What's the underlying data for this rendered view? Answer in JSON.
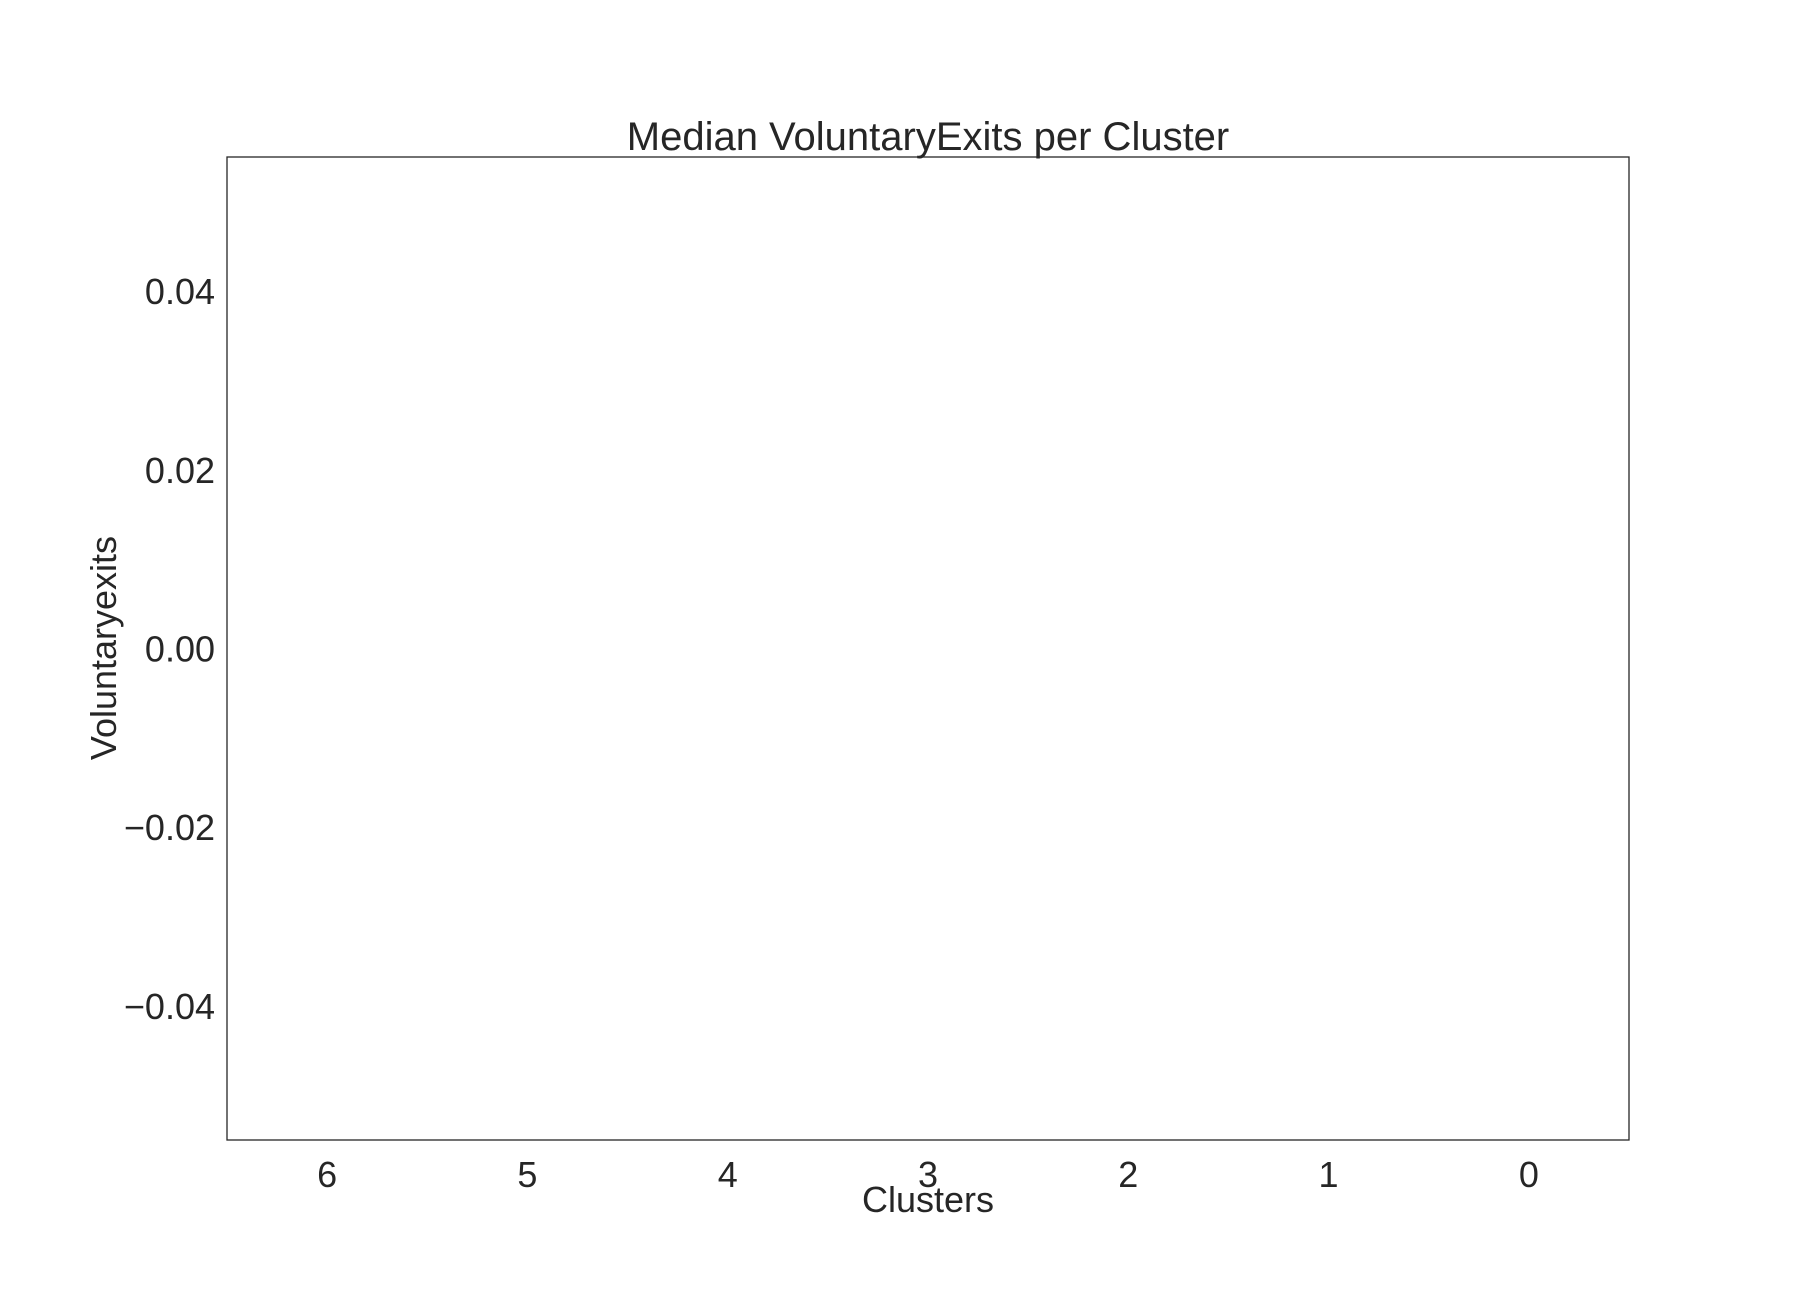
{
  "chart_data": {
    "type": "bar",
    "title": "Median VoluntaryExits per Cluster",
    "xlabel": "Clusters",
    "ylabel": "Voluntaryexits",
    "categories": [
      "6",
      "5",
      "4",
      "3",
      "2",
      "1",
      "0"
    ],
    "values": [
      0,
      0,
      0,
      0,
      0,
      0,
      0
    ],
    "ylim": [
      -0.055,
      0.055
    ],
    "yticks": [
      0.04,
      0.02,
      0.0,
      -0.02,
      -0.04
    ],
    "ytick_labels": [
      "0.04",
      "0.02",
      "0.00",
      "−0.02",
      "−0.04"
    ],
    "grid": false,
    "legend": "none"
  },
  "colors": {
    "text": "#262626",
    "frame": "#262626",
    "background": "#ffffff",
    "bar": "#4c72b0"
  }
}
